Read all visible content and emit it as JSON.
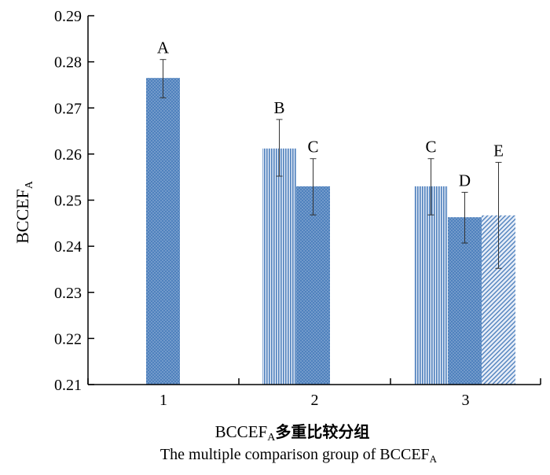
{
  "chart_data": {
    "type": "bar",
    "ylabel": "BCCEF",
    "ylabel_sub": "A",
    "xlabel_main": "BCCEF",
    "xlabel_main_sub": "A",
    "xlabel_main_suffix": "多重比较分组",
    "xlabel_en": "The multiple comparison group of BCCEF",
    "xlabel_en_sub": "A",
    "ylim": [
      0.21,
      0.29
    ],
    "yticks": [
      "0.21",
      "0.22",
      "0.23",
      "0.24",
      "0.25",
      "0.26",
      "0.27",
      "0.28",
      "0.29"
    ],
    "categories": [
      "1",
      "2",
      "3"
    ],
    "bars": [
      {
        "group": "1",
        "value": 0.2765,
        "err_low": 0.2722,
        "err_high": 0.2805,
        "label": "A",
        "pattern": "dots"
      },
      {
        "group": "2",
        "value": 0.2612,
        "err_low": 0.2552,
        "err_high": 0.2675,
        "label": "B",
        "pattern": "vlines"
      },
      {
        "group": "2",
        "value": 0.253,
        "err_low": 0.2468,
        "err_high": 0.259,
        "label": "C",
        "pattern": "dots"
      },
      {
        "group": "3",
        "value": 0.253,
        "err_low": 0.2468,
        "err_high": 0.259,
        "label": "C",
        "pattern": "vlines"
      },
      {
        "group": "3",
        "value": 0.2463,
        "err_low": 0.2407,
        "err_high": 0.2517,
        "label": "D",
        "pattern": "dots"
      },
      {
        "group": "3",
        "value": 0.2467,
        "err_low": 0.2352,
        "err_high": 0.2582,
        "label": "E",
        "pattern": "hatch"
      }
    ],
    "colors": {
      "bar_fill": "#4f81bd",
      "stripe": "#4f81bd",
      "axis": "#000000"
    }
  }
}
